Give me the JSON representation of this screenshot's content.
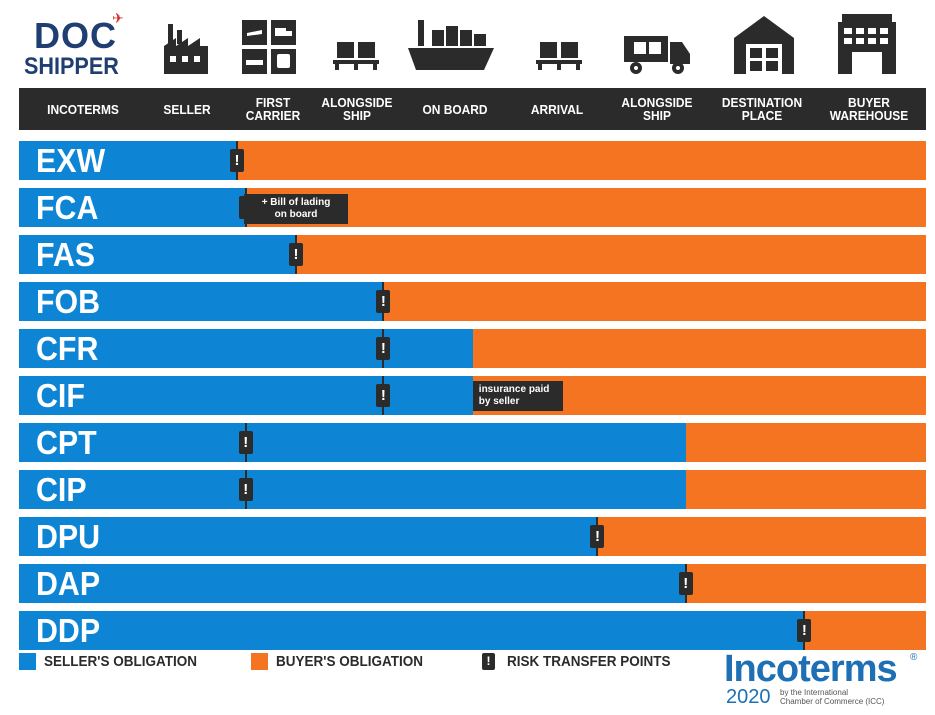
{
  "logo": {
    "line1": "DOC",
    "line2": "SHIPPER"
  },
  "header": {
    "columns": [
      "INCOTERMS",
      "SELLER",
      "FIRST\nCARRIER",
      "ALONGSIDE\nSHIP",
      "ON BOARD",
      "ARRIVAL",
      "ALONGSIDE\nSHIP",
      "DESTINATION\nPLACE",
      "BUYER\nWAREHOUSE"
    ]
  },
  "icons": [
    "factory-icon",
    "transport-modes-icon",
    "pallet-icon",
    "cargo-ship-icon",
    "pallet-icon",
    "delivery-truck-icon",
    "warehouse-icon",
    "office-building-icon"
  ],
  "colors": {
    "seller": "#0d85d4",
    "buyer": "#f47421",
    "dark": "#2b2b2b",
    "brand_navy": "#1f3f73",
    "incoterms_blue": "#1e6fb4"
  },
  "chart_data": {
    "type": "bar",
    "orientation": "horizontal",
    "stacked": true,
    "categories": [
      "EXW",
      "FCA",
      "FAS",
      "FOB",
      "CFR",
      "CIF",
      "CPT",
      "CIP",
      "DPU",
      "DAP",
      "DDP"
    ],
    "stages": [
      "SELLER",
      "FIRST CARRIER",
      "ALONGSIDE SHIP",
      "ON BOARD",
      "ARRIVAL",
      "ALONGSIDE SHIP",
      "DESTINATION PLACE",
      "BUYER WAREHOUSE"
    ],
    "series": [
      {
        "name": "SELLER'S OBLIGATION",
        "color": "#0d85d4",
        "stage_reached": [
          1.0,
          1.3,
          2.3,
          3.2,
          4.2,
          4.2,
          6.3,
          6.3,
          5.45,
          6.3,
          7.4
        ]
      },
      {
        "name": "BUYER'S OBLIGATION",
        "color": "#f47421"
      }
    ],
    "risk_transfer_points": [
      1.0,
      1.3,
      2.3,
      3.2,
      3.2,
      3.2,
      1.3,
      1.3,
      5.45,
      6.3,
      7.4
    ],
    "annotations": [
      {
        "row": "FCA",
        "stage": 2.3,
        "text": "+ Bill of lading\non board"
      },
      {
        "row": "CIF",
        "stage": 4.2,
        "text": "insurance paid\nby seller"
      }
    ],
    "legend": [
      "SELLER'S OBLIGATION",
      "BUYER'S OBLIGATION",
      "RISK TRANSFER POINTS"
    ],
    "legend_position": "bottom-left",
    "risk_marker_symbol": "!"
  },
  "incoterms_logo": {
    "word": "Incoterms",
    "reg": "®",
    "year": "2020",
    "by": "by the International\nChamber of Commerce (ICC)"
  }
}
